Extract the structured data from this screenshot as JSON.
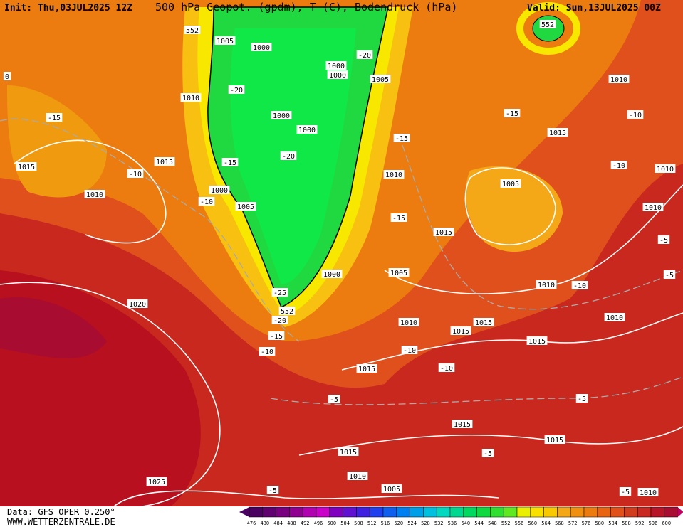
{
  "header": {
    "init": "Init: Thu,03JUL2025 12Z",
    "title": "500 hPa Geopot. (gpdm), T (C), Bodendruck (hPa)",
    "valid": "Valid: Sun,13JUL2025 00Z"
  },
  "footer": {
    "data": "Data: GFS OPER 0.250°",
    "site": "WWW.WETTERZENTRALE.DE"
  },
  "scale_labels": [
    "476",
    "480",
    "484",
    "488",
    "492",
    "496",
    "500",
    "504",
    "508",
    "512",
    "516",
    "520",
    "524",
    "528",
    "532",
    "536",
    "540",
    "544",
    "548",
    "552",
    "556",
    "560",
    "564",
    "568",
    "572",
    "576",
    "580",
    "584",
    "588",
    "592",
    "596",
    "600"
  ],
  "contour_labels": [
    "552",
    "1005",
    "1000",
    "552",
    "0",
    "-20",
    "1000",
    "1000",
    "-20",
    "1010",
    "1005",
    "1010",
    "-15",
    "1000",
    "-15",
    "-10",
    "1000",
    "1015",
    "-15",
    "-20",
    "-15",
    "1015",
    "1015",
    "-10",
    "1010",
    "-10",
    "1010",
    "1010",
    "1000",
    "-10",
    "1005",
    "1005",
    "1010",
    "-15",
    "1015",
    "-5",
    "1005",
    "1000",
    "-5",
    "1010",
    "-10",
    "1020",
    "552",
    "-25",
    "-20",
    "1010",
    "1015",
    "1010",
    "1015",
    "-15",
    "1015",
    "-10",
    "-10",
    "-10",
    "1015",
    "-5",
    "-5",
    "1015",
    "1015",
    "-5",
    "1015",
    "1010",
    "1025",
    "-5",
    "1005",
    "-5",
    "1010"
  ]
}
